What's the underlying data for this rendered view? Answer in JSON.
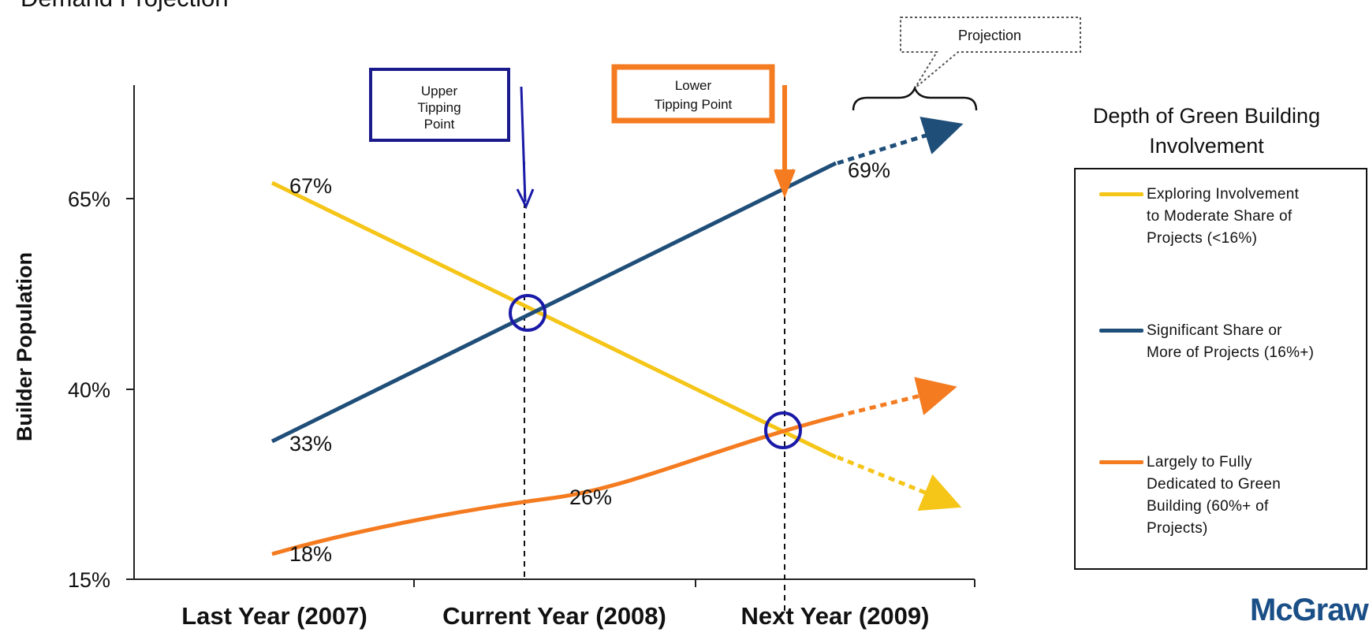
{
  "page_title": "Demand Projection",
  "logo_text": "McGraw",
  "legend": {
    "title_line1": "Depth of Green Building",
    "title_line2": "Involvement",
    "items": [
      {
        "lines": [
          "Exploring Involvement",
          "to Moderate Share of",
          "Projects (<16%)"
        ],
        "color": "#f5c518"
      },
      {
        "lines": [
          "Significant Share or",
          "More of Projects (16%+)"
        ],
        "color": "#1f4e79"
      },
      {
        "lines": [
          "Largely to Fully",
          "Dedicated to Green",
          "Building (60%+ of",
          "Projects)"
        ],
        "color": "#f47b20"
      }
    ]
  },
  "annotations": {
    "upper_tipping": [
      "Upper",
      "Tipping",
      "Point"
    ],
    "lower_tipping": [
      "Lower",
      "Tipping Point"
    ],
    "projection": "Projection"
  },
  "colors": {
    "yellow": "#f5c518",
    "navy": "#1f4e79",
    "orange": "#f47b20",
    "circle": "#1a1aa8",
    "upper_box": "#1a1a8c",
    "lower_box": "#f47b20"
  },
  "chart_data": {
    "type": "line",
    "ylabel": "Builder Population",
    "xlabel": "",
    "categories": [
      "Last Year (2007)",
      "Current Year (2008)",
      "Next Year (2009)"
    ],
    "y_ticks": [
      "15%",
      "40%",
      "65%"
    ],
    "ylim": [
      15,
      65
    ],
    "series": [
      {
        "name": "Exploring Involvement to Moderate Share of Projects (<16%)",
        "color": "#f5c518",
        "values": [
          67,
          50,
          36
        ]
      },
      {
        "name": "Significant Share or More of Projects (16%+)",
        "color": "#1f4e79",
        "values": [
          33,
          50,
          65
        ]
      },
      {
        "name": "Largely to Fully Dedicated to Green Building (60%+ of Projects)",
        "color": "#f47b20",
        "values": [
          18,
          26,
          36
        ]
      }
    ],
    "data_labels": [
      "67%",
      "69%",
      "33%",
      "26%",
      "18%"
    ]
  }
}
